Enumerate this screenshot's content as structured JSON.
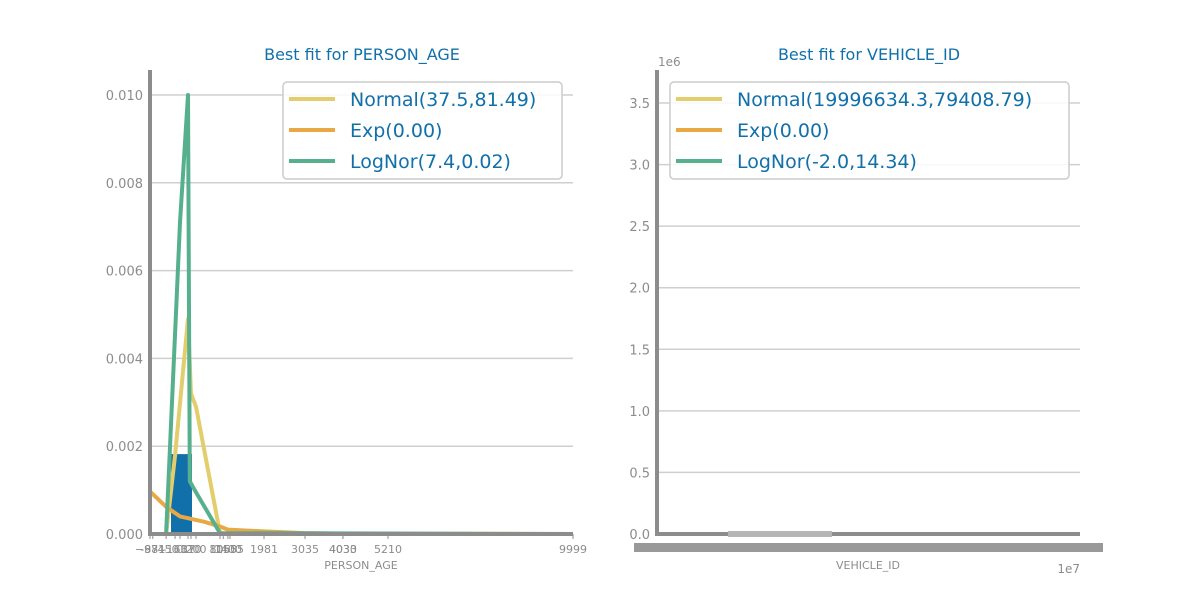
{
  "chart_data": [
    {
      "type": "histogram-with-fits",
      "title": "Best fit for PERSON_AGE",
      "xlabel": "PERSON_AGE",
      "ylabel": "",
      "ylim": [
        0,
        0.0105
      ],
      "xlim": [
        -971,
        9999
      ],
      "y_ticks": [
        "0.000",
        "0.002",
        "0.004",
        "0.006",
        "0.008",
        "0.010"
      ],
      "y_tick_values": [
        0,
        0.002,
        0.004,
        0.006,
        0.008,
        0.01
      ],
      "x_tick_labels": [
        {
          "value": -971,
          "label": "−971"
        },
        {
          "value": -881,
          "label": "-881"
        },
        {
          "value": -450,
          "label": "-450"
        },
        {
          "value": -160,
          "label": "-160"
        },
        {
          "value": 0,
          "label": "0"
        },
        {
          "value": 37,
          "label": "37"
        },
        {
          "value": 110,
          "label": "110"
        },
        {
          "value": 200,
          "label": "200"
        },
        {
          "value": 806,
          "label": "806"
        },
        {
          "value": 1050,
          "label": "1050"
        },
        {
          "value": 1400,
          "label": "1400"
        },
        {
          "value": 1555,
          "label": "1555"
        },
        {
          "value": 1981,
          "label": "1981"
        },
        {
          "value": 3035,
          "label": "3035"
        },
        {
          "value": 4030,
          "label": "4030"
        },
        {
          "value": 4033,
          "label": "4033"
        },
        {
          "value": 5210,
          "label": "5210"
        },
        {
          "value": 9999,
          "label": "9999"
        }
      ],
      "histogram": {
        "color": "#1170aa",
        "bins": [
          {
            "x0": 0,
            "x1": 110,
            "density": 0.00182
          }
        ]
      },
      "series": [
        {
          "name": "Normal(37.5,81.49)",
          "color": "#e3cd6c",
          "points": [
            [
              -971,
              0
            ],
            [
              -450,
              0
            ],
            [
              -160,
              0.0018
            ],
            [
              37,
              0.0049
            ],
            [
              110,
              0.0032
            ],
            [
              200,
              0.0029
            ],
            [
              806,
              2e-05
            ],
            [
              1555,
              0
            ],
            [
              9999,
              0
            ]
          ]
        },
        {
          "name": "Exp(0.00)",
          "color": "#e8a945",
          "points": [
            [
              -971,
              0.00097
            ],
            [
              -450,
              0.00062
            ],
            [
              0,
              0.0004
            ],
            [
              400,
              0.00028
            ],
            [
              806,
              0.00017
            ],
            [
              1400,
              0.0001
            ],
            [
              1981,
              6e-05
            ],
            [
              3035,
              2e-05
            ],
            [
              4033,
              1e-05
            ],
            [
              5210,
              4e-06
            ],
            [
              9999,
              0
            ]
          ]
        },
        {
          "name": "LogNor(7.4,0.02)",
          "color": "#57b08d",
          "points": [
            [
              -450,
              0
            ],
            [
              -100,
              0.0055
            ],
            [
              0,
              0.0071
            ],
            [
              37,
              0.01
            ],
            [
              80,
              0.0012
            ],
            [
              200,
              0.00095
            ],
            [
              806,
              2e-05
            ],
            [
              9999,
              0
            ]
          ]
        }
      ],
      "legend_position": "top-right",
      "grid": "horizontal"
    },
    {
      "type": "histogram-with-fits",
      "title": "Best fit for VEHICLE_ID",
      "xlabel": "VEHICLE_ID",
      "ylabel": "",
      "y_scale_label": "1e6",
      "x_scale_label": "1e7",
      "ylim": [
        0,
        3.75
      ],
      "y_ticks": [
        "0.0",
        "0.5",
        "1.0",
        "1.5",
        "2.0",
        "2.5",
        "3.0",
        "3.5"
      ],
      "y_tick_values": [
        0,
        0.5,
        1.0,
        1.5,
        2.0,
        2.5,
        3.0,
        3.5
      ],
      "series": [
        {
          "name": "Normal(19996634.3,79408.79)",
          "color": "#e3cd6c"
        },
        {
          "name": "Exp(0.00)",
          "color": "#e8a945"
        },
        {
          "name": "LogNor(-2.0,14.34)",
          "color": "#57b08d"
        }
      ],
      "legend_position": "top-right",
      "grid": "horizontal"
    }
  ]
}
